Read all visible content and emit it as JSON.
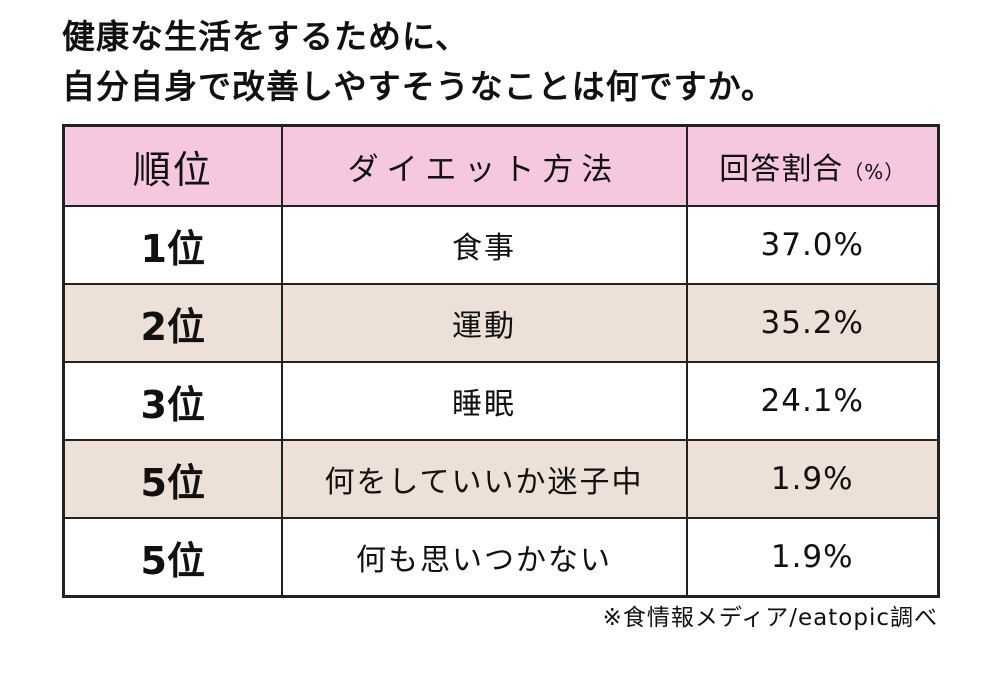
{
  "chart_data": {
    "type": "table",
    "title": [
      "健康な生活をするために、",
      "自分自身で改善しやすそうなことは何ですか。"
    ],
    "header": {
      "rank": "順位",
      "method": "ダイエット方法",
      "rate": "回答割合",
      "rate_unit": "（%）"
    },
    "rows": [
      {
        "rank": "1位",
        "method": "食事",
        "rate": "37.0%",
        "value": 37.0
      },
      {
        "rank": "2位",
        "method": "運動",
        "rate": "35.2%",
        "value": 35.2
      },
      {
        "rank": "3位",
        "method": "睡眠",
        "rate": "24.1%",
        "value": 24.1
      },
      {
        "rank": "5位",
        "method": "何をしていいか迷子中",
        "rate": "1.9%",
        "value": 1.9
      },
      {
        "rank": "5位",
        "method": "何も思いつかない",
        "rate": "1.9%",
        "value": 1.9
      }
    ],
    "source": "※食情報メディア/eatopic調べ"
  },
  "colors": {
    "header_bg": "#f5c8df",
    "stripe_bg": "#ede0d6",
    "border": "#222222"
  }
}
